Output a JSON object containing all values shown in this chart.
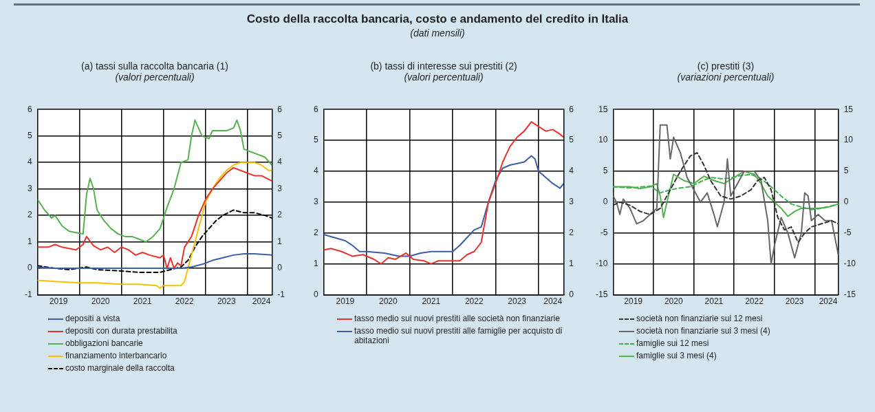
{
  "chart_data": [
    {
      "type": "line",
      "title": "(a) tassi sulla raccolta bancaria (1)",
      "subtitle": "(valori percentuali)",
      "annotations": [
        "Costo della raccolta bancaria, costo e andamento del credito in Italia",
        "(dati mensili)"
      ],
      "xlim": [
        "2019-01",
        "2024-08"
      ],
      "xticks": [
        {
          "value": "2019-07",
          "label": "2019"
        },
        {
          "value": "2020-01",
          "label": null
        },
        {
          "value": "2020-07",
          "label": "2020"
        },
        {
          "value": "2021-01",
          "label": null
        },
        {
          "value": "2021-07",
          "label": "2021"
        },
        {
          "value": "2022-01",
          "label": null
        },
        {
          "value": "2022-07",
          "label": "2022"
        },
        {
          "value": "2023-01",
          "label": null
        },
        {
          "value": "2023-07",
          "label": "2023"
        },
        {
          "value": "2024-01",
          "label": null
        },
        {
          "value": "2024-05",
          "label": "2024"
        }
      ],
      "ylim": [
        -1,
        6
      ],
      "yticks": [
        -1,
        0,
        1,
        2,
        3,
        4,
        5,
        6
      ],
      "y2lim": [
        -1,
        6
      ],
      "y2ticks": [
        -1,
        0,
        1,
        2,
        3,
        4,
        5,
        6
      ],
      "grid": true,
      "legend": "bottom",
      "series": [
        {
          "name": "depositi a vista",
          "color": "#3a5fa8",
          "x": [
            "2019-01",
            "2019-06",
            "2020-01",
            "2020-06",
            "2021-01",
            "2021-06",
            "2022-01",
            "2022-06",
            "2022-09",
            "2022-12",
            "2023-03",
            "2023-06",
            "2023-09",
            "2023-12",
            "2024-03",
            "2024-08"
          ],
          "values": [
            0.05,
            0.0,
            0.0,
            0.0,
            0.0,
            0.0,
            0.0,
            0.0,
            0.05,
            0.15,
            0.3,
            0.4,
            0.5,
            0.55,
            0.55,
            0.5
          ]
        },
        {
          "name": "depositi con durata prestabilita",
          "color": "#e8322b",
          "x": [
            "2019-01",
            "2019-04",
            "2019-06",
            "2019-08",
            "2019-12",
            "2020-02",
            "2020-03",
            "2020-05",
            "2020-07",
            "2020-09",
            "2020-11",
            "2021-01",
            "2021-03",
            "2021-05",
            "2021-07",
            "2021-09",
            "2021-12",
            "2022-01",
            "2022-02",
            "2022-03",
            "2022-04",
            "2022-05",
            "2022-06",
            "2022-07",
            "2022-09",
            "2022-11",
            "2023-01",
            "2023-03",
            "2023-05",
            "2023-07",
            "2023-09",
            "2023-11",
            "2024-01",
            "2024-03",
            "2024-05",
            "2024-08"
          ],
          "values": [
            0.8,
            0.8,
            0.9,
            0.8,
            0.7,
            0.9,
            1.2,
            0.85,
            0.7,
            0.8,
            0.6,
            0.8,
            0.7,
            0.5,
            0.6,
            0.5,
            0.4,
            0.5,
            0.0,
            0.4,
            0.0,
            0.2,
            0.1,
            0.8,
            1.2,
            2.0,
            2.6,
            3.0,
            3.3,
            3.6,
            3.8,
            3.7,
            3.6,
            3.5,
            3.5,
            3.3
          ]
        },
        {
          "name": "obbligazioni bancarie",
          "color": "#55b04f",
          "x": [
            "2019-01",
            "2019-03",
            "2019-05",
            "2019-06",
            "2019-08",
            "2019-10",
            "2019-12",
            "2020-02",
            "2020-03",
            "2020-04",
            "2020-05",
            "2020-06",
            "2020-08",
            "2020-10",
            "2020-12",
            "2021-02",
            "2021-04",
            "2021-06",
            "2021-08",
            "2021-10",
            "2021-12",
            "2022-02",
            "2022-04",
            "2022-06",
            "2022-08",
            "2022-09",
            "2022-10",
            "2022-11",
            "2022-12",
            "2023-02",
            "2023-03",
            "2023-05",
            "2023-07",
            "2023-09",
            "2023-10",
            "2023-11",
            "2023-12",
            "2024-02",
            "2024-04",
            "2024-06",
            "2024-08"
          ],
          "values": [
            2.6,
            2.2,
            1.9,
            2.0,
            1.6,
            1.4,
            1.35,
            1.3,
            2.8,
            3.4,
            3.0,
            2.2,
            1.8,
            1.5,
            1.3,
            1.2,
            1.2,
            1.1,
            1.0,
            1.2,
            1.5,
            2.3,
            3.0,
            4.0,
            4.1,
            5.0,
            5.6,
            5.3,
            5.0,
            4.9,
            5.2,
            5.2,
            5.2,
            5.3,
            5.6,
            5.2,
            4.5,
            4.4,
            4.3,
            4.2,
            3.9
          ]
        },
        {
          "name": "finanziamento interbancario",
          "color": "#f5c000",
          "x": [
            "2019-01",
            "2019-06",
            "2020-01",
            "2020-06",
            "2021-01",
            "2021-06",
            "2021-11",
            "2021-12",
            "2022-01",
            "2022-06",
            "2022-07",
            "2022-08",
            "2022-09",
            "2022-11",
            "2023-01",
            "2023-03",
            "2023-05",
            "2023-07",
            "2023-09",
            "2023-11",
            "2024-03",
            "2024-05",
            "2024-07",
            "2024-08"
          ],
          "values": [
            -0.45,
            -0.5,
            -0.55,
            -0.55,
            -0.6,
            -0.6,
            -0.65,
            -0.75,
            -0.65,
            -0.65,
            -0.5,
            0.0,
            0.5,
            1.5,
            2.5,
            3.0,
            3.4,
            3.7,
            3.9,
            4.0,
            4.0,
            3.9,
            3.7,
            3.7
          ]
        },
        {
          "name": "costo marginale della raccolta",
          "color": "#000000",
          "line_style": "dashed",
          "x": [
            "2019-01",
            "2019-06",
            "2019-10",
            "2020-03",
            "2020-06",
            "2021-01",
            "2021-06",
            "2021-12",
            "2022-03",
            "2022-06",
            "2022-08",
            "2022-10",
            "2022-12",
            "2023-02",
            "2023-04",
            "2023-06",
            "2023-09",
            "2023-12",
            "2024-03",
            "2024-06",
            "2024-08"
          ],
          "values": [
            0.1,
            0.0,
            -0.05,
            0.05,
            -0.05,
            -0.1,
            -0.15,
            -0.15,
            -0.05,
            0.05,
            0.3,
            0.8,
            1.2,
            1.5,
            1.8,
            2.0,
            2.2,
            2.1,
            2.1,
            2.0,
            1.9
          ]
        }
      ]
    },
    {
      "type": "line",
      "title": "(b) tassi di interesse sui prestiti (2)",
      "subtitle": "(valori percentuali)",
      "xlim": [
        "2019-01",
        "2024-08"
      ],
      "xticks": [
        {
          "value": "2019-07",
          "label": "2019"
        },
        {
          "value": "2020-01",
          "label": null
        },
        {
          "value": "2020-07",
          "label": "2020"
        },
        {
          "value": "2021-01",
          "label": null
        },
        {
          "value": "2021-07",
          "label": "2021"
        },
        {
          "value": "2022-01",
          "label": null
        },
        {
          "value": "2022-07",
          "label": "2022"
        },
        {
          "value": "2023-01",
          "label": null
        },
        {
          "value": "2023-07",
          "label": "2023"
        },
        {
          "value": "2024-01",
          "label": null
        },
        {
          "value": "2024-05",
          "label": "2024"
        }
      ],
      "ylim": [
        0,
        6
      ],
      "yticks": [
        0,
        1,
        2,
        3,
        4,
        5,
        6
      ],
      "y2lim": [
        0,
        6
      ],
      "y2ticks": [
        0,
        1,
        2,
        3,
        4,
        5,
        6
      ],
      "grid": true,
      "legend": "bottom",
      "series": [
        {
          "name": "tasso medio sui nuovi prestiti alle società non finanziarie",
          "color": "#e8322b",
          "x": [
            "2019-01",
            "2019-03",
            "2019-06",
            "2019-09",
            "2019-12",
            "2020-03",
            "2020-05",
            "2020-07",
            "2020-09",
            "2020-12",
            "2021-02",
            "2021-05",
            "2021-07",
            "2021-09",
            "2021-12",
            "2022-03",
            "2022-05",
            "2022-07",
            "2022-09",
            "2022-11",
            "2023-01",
            "2023-03",
            "2023-05",
            "2023-07",
            "2023-09",
            "2023-11",
            "2024-01",
            "2024-03",
            "2024-05",
            "2024-07",
            "2024-08"
          ],
          "values": [
            1.45,
            1.5,
            1.4,
            1.25,
            1.3,
            1.15,
            1.0,
            1.2,
            1.15,
            1.35,
            1.15,
            1.1,
            1.0,
            1.1,
            1.1,
            1.1,
            1.3,
            1.4,
            1.7,
            3.0,
            3.6,
            4.3,
            4.8,
            5.1,
            5.3,
            5.6,
            5.45,
            5.3,
            5.35,
            5.2,
            5.1
          ]
        },
        {
          "name": "tasso medio sui nuovi prestiti alle famiglie per acquisto di abitazioni",
          "color": "#3a5fa8",
          "x": [
            "2019-01",
            "2019-04",
            "2019-07",
            "2019-09",
            "2019-11",
            "2020-01",
            "2020-06",
            "2020-10",
            "2021-01",
            "2021-04",
            "2021-07",
            "2021-10",
            "2022-01",
            "2022-03",
            "2022-05",
            "2022-07",
            "2022-09",
            "2022-11",
            "2023-01",
            "2023-03",
            "2023-05",
            "2023-07",
            "2023-09",
            "2023-11",
            "2023-12",
            "2024-01",
            "2024-03",
            "2024-05",
            "2024-07",
            "2024-08"
          ],
          "values": [
            1.95,
            1.85,
            1.75,
            1.6,
            1.4,
            1.4,
            1.35,
            1.25,
            1.25,
            1.35,
            1.4,
            1.4,
            1.4,
            1.6,
            1.85,
            2.1,
            2.2,
            3.0,
            3.7,
            4.1,
            4.2,
            4.25,
            4.3,
            4.5,
            4.4,
            4.0,
            3.8,
            3.6,
            3.45,
            3.6
          ]
        }
      ]
    },
    {
      "type": "line",
      "title": "(c) prestiti (3)",
      "subtitle": "(variazioni percentuali)",
      "xlim": [
        "2019-01",
        "2024-08"
      ],
      "xticks": [
        {
          "value": "2019-07",
          "label": "2019"
        },
        {
          "value": "2020-01",
          "label": null
        },
        {
          "value": "2020-07",
          "label": "2020"
        },
        {
          "value": "2021-01",
          "label": null
        },
        {
          "value": "2021-07",
          "label": "2021"
        },
        {
          "value": "2022-01",
          "label": null
        },
        {
          "value": "2022-07",
          "label": "2022"
        },
        {
          "value": "2023-01",
          "label": null
        },
        {
          "value": "2023-07",
          "label": "2023"
        },
        {
          "value": "2024-01",
          "label": null
        },
        {
          "value": "2024-05",
          "label": "2024"
        }
      ],
      "ylim": [
        -15,
        15
      ],
      "yticks": [
        -15,
        -10,
        -5,
        0,
        5,
        10,
        15
      ],
      "y2lim": [
        -15,
        15
      ],
      "y2ticks": [
        -15,
        -10,
        -5,
        0,
        5,
        10,
        15
      ],
      "grid": true,
      "legend": "bottom",
      "series": [
        {
          "name": "società non finanziarie sui 12 mesi",
          "color": "#333333",
          "line_style": "dashed",
          "x": [
            "2019-01",
            "2019-03",
            "2019-06",
            "2019-09",
            "2019-12",
            "2020-03",
            "2020-06",
            "2020-09",
            "2020-12",
            "2021-02",
            "2021-04",
            "2021-06",
            "2021-09",
            "2021-12",
            "2022-03",
            "2022-06",
            "2022-08",
            "2022-10",
            "2022-12",
            "2023-02",
            "2023-04",
            "2023-06",
            "2023-08",
            "2023-10",
            "2023-12",
            "2024-03",
            "2024-06",
            "2024-08"
          ],
          "values": [
            -0.5,
            0.0,
            -0.5,
            -1.5,
            -2.0,
            -1.0,
            2.0,
            5.0,
            7.5,
            8.0,
            6.0,
            3.5,
            1.0,
            0.5,
            1.0,
            2.0,
            3.5,
            4.0,
            2.0,
            -2.5,
            -4.5,
            -4.0,
            -6.5,
            -5.0,
            -4.0,
            -3.5,
            -3.0,
            -3.5
          ]
        },
        {
          "name": "società non finanziarie sui 3 mesi (4)",
          "color": "#666666",
          "x": [
            "2019-01",
            "2019-02",
            "2019-03",
            "2019-04",
            "2019-06",
            "2019-08",
            "2019-10",
            "2019-12",
            "2020-02",
            "2020-03",
            "2020-05",
            "2020-06",
            "2020-07",
            "2020-09",
            "2020-11",
            "2021-01",
            "2021-03",
            "2021-05",
            "2021-07",
            "2021-08",
            "2021-10",
            "2021-11",
            "2021-12",
            "2022-02",
            "2022-04",
            "2022-07",
            "2022-09",
            "2022-11",
            "2022-12",
            "2023-01",
            "2023-03",
            "2023-05",
            "2023-07",
            "2023-09",
            "2023-10",
            "2023-11",
            "2023-12",
            "2024-02",
            "2024-04",
            "2024-06",
            "2024-08"
          ],
          "values": [
            1.0,
            0.0,
            -2.0,
            0.5,
            -1.0,
            -3.5,
            -3.0,
            -2.0,
            -1.0,
            12.5,
            12.5,
            7.0,
            10.5,
            8.0,
            4.0,
            2.0,
            0.0,
            1.5,
            -2.0,
            -4.0,
            0.0,
            7.0,
            1.0,
            3.0,
            5.0,
            5.0,
            3.5,
            -3.0,
            -10.0,
            -7.0,
            -2.5,
            -5.0,
            -9.0,
            -5.0,
            1.5,
            1.0,
            -3.0,
            -2.0,
            -3.0,
            -3.0,
            -8.5
          ]
        },
        {
          "name": "famiglie sui 12 mesi",
          "color": "#3cb44b",
          "line_style": "dashed",
          "x": [
            "2019-01",
            "2019-06",
            "2019-12",
            "2020-03",
            "2020-06",
            "2020-09",
            "2020-12",
            "2021-03",
            "2021-06",
            "2021-09",
            "2021-12",
            "2022-03",
            "2022-06",
            "2022-09",
            "2022-12",
            "2023-03",
            "2023-06",
            "2023-09",
            "2023-12",
            "2024-03",
            "2024-06",
            "2024-08"
          ],
          "values": [
            2.5,
            2.3,
            2.6,
            1.5,
            2.0,
            2.3,
            2.5,
            3.3,
            4.0,
            3.8,
            3.9,
            4.3,
            4.5,
            3.8,
            2.5,
            1.0,
            -0.3,
            -0.8,
            -1.2,
            -1.0,
            -0.6,
            -0.3
          ]
        },
        {
          "name": "famiglie sui 3 mesi (4)",
          "color": "#55b04f",
          "x": [
            "2019-01",
            "2019-06",
            "2019-09",
            "2019-12",
            "2020-02",
            "2020-03",
            "2020-04",
            "2020-05",
            "2020-07",
            "2020-10",
            "2021-01",
            "2021-04",
            "2021-07",
            "2021-10",
            "2022-01",
            "2022-04",
            "2022-07",
            "2022-09",
            "2022-11",
            "2023-01",
            "2023-03",
            "2023-05",
            "2023-07",
            "2023-09",
            "2023-11",
            "2024-02",
            "2024-05",
            "2024-08"
          ],
          "values": [
            2.5,
            2.5,
            2.2,
            2.5,
            3.0,
            1.0,
            -2.5,
            0.0,
            4.5,
            3.5,
            3.0,
            4.2,
            3.5,
            3.0,
            4.0,
            5.0,
            4.5,
            3.0,
            1.0,
            0.0,
            -1.0,
            -2.3,
            -1.5,
            -1.0,
            -1.0,
            -1.0,
            -0.8,
            -0.3
          ]
        }
      ]
    }
  ]
}
